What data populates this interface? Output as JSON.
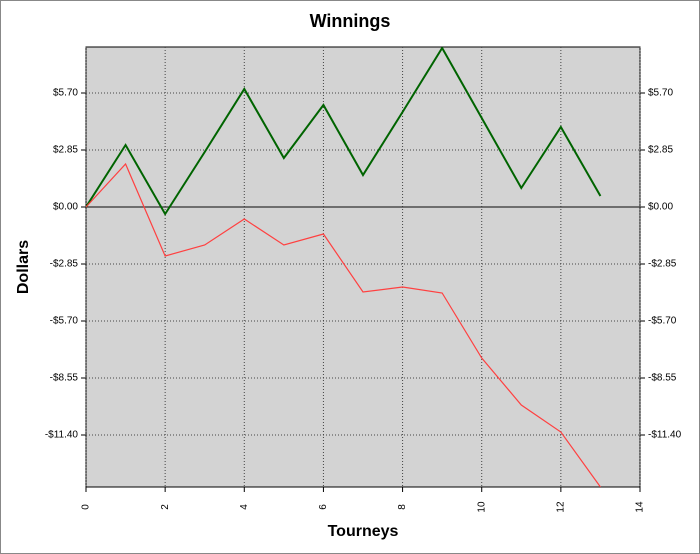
{
  "chart_data": {
    "type": "line",
    "title": "Winnings",
    "x_label": "Tourneys",
    "y_label": "Dollars",
    "x": [
      0,
      1,
      2,
      3,
      4,
      5,
      6,
      7,
      8,
      9,
      10,
      11,
      12,
      13
    ],
    "series": [
      {
        "color": "#006400",
        "values": [
          0,
          3.1,
          -0.35,
          2.75,
          5.9,
          2.45,
          5.1,
          1.6,
          4.75,
          7.95,
          4.45,
          0.95,
          4.0,
          0.55
        ]
      },
      {
        "color": "#ff4040",
        "values": [
          0,
          2.15,
          -2.45,
          -1.9,
          -0.6,
          -1.9,
          -1.35,
          -4.25,
          -4.0,
          -4.3,
          -7.55,
          -9.9,
          -11.25,
          -14.0
        ]
      }
    ],
    "xlim": [
      0,
      14
    ],
    "xticks": [
      0,
      2,
      4,
      6,
      8,
      10,
      12,
      14
    ],
    "ylim": [
      -14,
      8
    ],
    "yticks": [
      {
        "value": -11.4,
        "label": "-$11.40"
      },
      {
        "value": -8.55,
        "label": "-$8.55"
      },
      {
        "value": -5.7,
        "label": "-$5.70"
      },
      {
        "value": -2.85,
        "label": "-$2.85"
      },
      {
        "value": 0,
        "label": "$0.00"
      },
      {
        "value": 2.85,
        "label": "$2.85"
      },
      {
        "value": 5.7,
        "label": "$5.70"
      }
    ],
    "grid": true
  }
}
